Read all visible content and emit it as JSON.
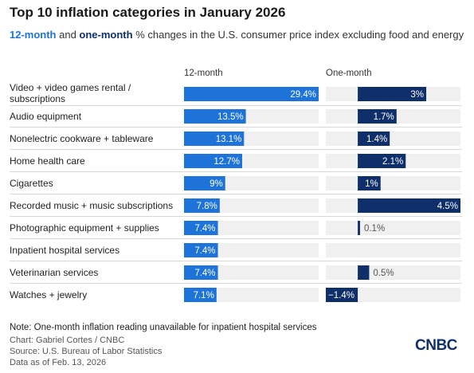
{
  "chart_data": {
    "type": "bar",
    "title": "Top 10 inflation categories in January 2026",
    "subtitle_parts": [
      "12-month",
      " and ",
      "one-month",
      " % changes in the U.S. consumer price index excluding food and energy"
    ],
    "categories": [
      "Video + video games rental / subscriptions",
      "Audio equipment",
      "Nonelectric cookware + tableware",
      "Home health care",
      "Cigarettes",
      "Recorded music + music subscriptions",
      "Photographic equipment + supplies",
      "Inpatient hospital services",
      "Veterinarian services",
      "Watches + jewelry"
    ],
    "series": [
      {
        "name": "12-month",
        "values": [
          29.4,
          13.5,
          13.1,
          12.7,
          9,
          7.8,
          7.4,
          7.4,
          7.4,
          7.1
        ],
        "labels": [
          "29.4%",
          "13.5%",
          "13.1%",
          "12.7%",
          "9%",
          "7.8%",
          "7.4%",
          "7.4%",
          "7.4%",
          "7.1%"
        ],
        "color": "#1e73d8",
        "xlim": [
          0,
          29.4
        ]
      },
      {
        "name": "One-month",
        "values": [
          3,
          1.7,
          1.4,
          2.1,
          1,
          4.5,
          0.1,
          null,
          0.5,
          -1.4
        ],
        "labels": [
          "3%",
          "1.7%",
          "1.4%",
          "2.1%",
          "1%",
          "4.5%",
          "0.1%",
          "",
          "0.5%",
          "−1.4%"
        ],
        "color": "#0f2f6b",
        "xlim": [
          -1.4,
          4.5
        ]
      }
    ],
    "colors": {
      "track": "#f0f0f0",
      "divider": "#d9d9d9"
    }
  },
  "footer": {
    "note": "Note: One-month inflation reading unavailable for inpatient hospital services",
    "credit": "Chart: Gabriel Cortes / CNBC",
    "source": "Source: U.S. Bureau of Labor Statistics",
    "date": "Data as of Feb. 13, 2026"
  },
  "logo": {
    "text": "CNBC"
  }
}
